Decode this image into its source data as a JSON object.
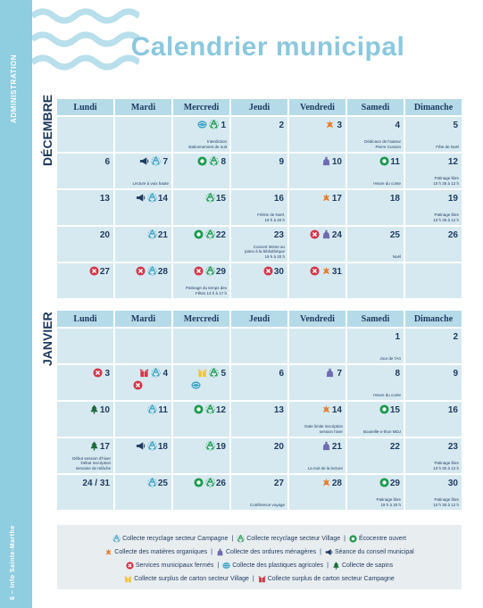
{
  "sidebar": {
    "section": "ADMINISTRATION",
    "footer": "6 – Info Sainte-Marthe"
  },
  "title": "Calendrier municipal",
  "days": [
    "Lundi",
    "Mardi",
    "Mercredi",
    "Jeudi",
    "Vendredi",
    "Samedi",
    "Dimanche"
  ],
  "colors": {
    "band": "#8fcde0",
    "title": "#8cc8dd",
    "header": "#b5dbe8",
    "cell": "#d6e9f0",
    "navy": "#1e3a5f",
    "green": "#1f9a50",
    "red": "#d4364a",
    "purple": "#6f6bb0",
    "orange": "#e87d2f",
    "teal": "#3ba3c4",
    "yellow": "#f2c43a",
    "tree": "#1c6b3a"
  },
  "months": [
    {
      "label": "DÉCEMBRE",
      "weeks": [
        [
          {
            "num": "",
            "icons": [],
            "note": ""
          },
          {
            "num": "",
            "icons": [],
            "note": ""
          },
          {
            "num": "1",
            "icons": [
              "plastic-icon",
              "recycle-green-icon"
            ],
            "note": "Interdiction\nstationnement de nuit"
          },
          {
            "num": "2",
            "icons": [],
            "note": ""
          },
          {
            "num": "3",
            "icons": [
              "organic-icon"
            ],
            "note": ""
          },
          {
            "num": "4",
            "icons": [],
            "note": "Dédicace de l'auteur\nPierre Cusson"
          },
          {
            "num": "5",
            "icons": [],
            "note": "Fête de Noël"
          }
        ],
        [
          {
            "num": "6",
            "icons": [],
            "note": ""
          },
          {
            "num": "7",
            "icons": [
              "megaphone-icon",
              "recycle-blue-icon"
            ],
            "note": "Lecture à voix haute"
          },
          {
            "num": "8",
            "icons": [
              "ecocentre-icon",
              "recycle-green-icon"
            ],
            "note": ""
          },
          {
            "num": "9",
            "icons": [],
            "note": ""
          },
          {
            "num": "10",
            "icons": [
              "garbage-icon"
            ],
            "note": ""
          },
          {
            "num": "11",
            "icons": [
              "ecocentre-icon"
            ],
            "note": "Heure du conte"
          },
          {
            "num": "12",
            "icons": [],
            "note": "Patinage libre\n10 h 30 à 12 h"
          }
        ],
        [
          {
            "num": "13",
            "icons": [],
            "note": ""
          },
          {
            "num": "14",
            "icons": [
              "megaphone-icon",
              "recycle-blue-icon"
            ],
            "note": ""
          },
          {
            "num": "15",
            "icons": [
              "recycle-green-icon"
            ],
            "note": ""
          },
          {
            "num": "16",
            "icons": [],
            "note": "Féérie de Noël,\n19 h à 20 h"
          },
          {
            "num": "17",
            "icons": [
              "organic-icon"
            ],
            "note": ""
          },
          {
            "num": "18",
            "icons": [],
            "note": ""
          },
          {
            "num": "19",
            "icons": [],
            "note": "Patinage libre\n10 h 30 à 12 h"
          }
        ],
        [
          {
            "num": "20",
            "icons": [],
            "note": ""
          },
          {
            "num": "21",
            "icons": [
              "recycle-blue-icon"
            ],
            "note": ""
          },
          {
            "num": "22",
            "icons": [
              "ecocentre-icon",
              "recycle-green-icon"
            ],
            "note": ""
          },
          {
            "num": "23",
            "icons": [],
            "note": "Concert intime au\npiano à la bibliothèque\n19 h à 20 h"
          },
          {
            "num": "24",
            "icons": [
              "closed-icon",
              "garbage-icon"
            ],
            "note": ""
          },
          {
            "num": "25",
            "icons": [],
            "note": "Noël"
          },
          {
            "num": "26",
            "icons": [],
            "note": ""
          }
        ],
        [
          {
            "num": "27",
            "icons": [
              "closed-icon"
            ],
            "note": ""
          },
          {
            "num": "28",
            "icons": [
              "closed-icon",
              "recycle-blue-icon"
            ],
            "note": ""
          },
          {
            "num": "29",
            "icons": [
              "closed-icon",
              "recycle-green-icon"
            ],
            "note": "Patinage du temps des\nFêtes 13 h à 17 h"
          },
          {
            "num": "30",
            "icons": [
              "closed-icon"
            ],
            "note": ""
          },
          {
            "num": "31",
            "icons": [
              "closed-icon",
              "organic-icon"
            ],
            "note": ""
          },
          {
            "num": "",
            "icons": [],
            "note": ""
          },
          {
            "num": "",
            "icons": [],
            "note": ""
          }
        ]
      ]
    },
    {
      "label": "JANVIER",
      "weeks": [
        [
          {
            "num": "",
            "icons": [],
            "note": ""
          },
          {
            "num": "",
            "icons": [],
            "note": ""
          },
          {
            "num": "",
            "icons": [],
            "note": ""
          },
          {
            "num": "",
            "icons": [],
            "note": ""
          },
          {
            "num": "",
            "icons": [],
            "note": ""
          },
          {
            "num": "1",
            "icons": [],
            "note": "Jour de l'An"
          },
          {
            "num": "2",
            "icons": [],
            "note": ""
          }
        ],
        [
          {
            "num": "3",
            "icons": [
              "closed-icon"
            ],
            "note": ""
          },
          {
            "num": "4",
            "icons": [
              "carton-red-icon",
              "recycle-blue-icon"
            ],
            "stack": "closed-icon",
            "note": ""
          },
          {
            "num": "5",
            "icons": [
              "carton-yellow-icon",
              "recycle-green-icon"
            ],
            "stack": "plastic-icon",
            "note": ""
          },
          {
            "num": "6",
            "icons": [],
            "note": ""
          },
          {
            "num": "7",
            "icons": [
              "garbage-icon"
            ],
            "note": ""
          },
          {
            "num": "8",
            "icons": [],
            "note": "Heure du conte"
          },
          {
            "num": "9",
            "icons": [],
            "note": ""
          }
        ],
        [
          {
            "num": "10",
            "icons": [
              "tree-icon"
            ],
            "note": ""
          },
          {
            "num": "11",
            "icons": [
              "recycle-blue-icon"
            ],
            "note": ""
          },
          {
            "num": "12",
            "icons": [
              "ecocentre-icon",
              "recycle-green-icon"
            ],
            "note": ""
          },
          {
            "num": "13",
            "icons": [],
            "note": ""
          },
          {
            "num": "14",
            "icons": [
              "organic-icon"
            ],
            "note": "Date limite inscription\nsession hiver"
          },
          {
            "num": "15",
            "icons": [
              "ecocentre-icon"
            ],
            "note": "Bouteille-o-thon MDJ"
          },
          {
            "num": "16",
            "icons": [],
            "note": ""
          }
        ],
        [
          {
            "num": "17",
            "icons": [
              "tree-icon"
            ],
            "note": "Début session d'hiver\nDébut inscription\nsemaine de relâche"
          },
          {
            "num": "18",
            "icons": [
              "megaphone-icon",
              "recycle-blue-icon"
            ],
            "note": ""
          },
          {
            "num": "19",
            "icons": [
              "recycle-green-icon"
            ],
            "note": ""
          },
          {
            "num": "20",
            "icons": [],
            "note": ""
          },
          {
            "num": "21",
            "icons": [
              "garbage-icon"
            ],
            "note": "La nuit de la lecture"
          },
          {
            "num": "22",
            "icons": [],
            "note": ""
          },
          {
            "num": "23",
            "icons": [],
            "note": "Patinage libre\n10 h 30 à 12 h"
          }
        ],
        [
          {
            "num": "24 / 31",
            "icons": [],
            "note": ""
          },
          {
            "num": "25",
            "icons": [
              "recycle-blue-icon"
            ],
            "note": ""
          },
          {
            "num": "26",
            "icons": [
              "ecocentre-icon",
              "recycle-green-icon"
            ],
            "note": ""
          },
          {
            "num": "27",
            "icons": [],
            "note": "Conférence voyage"
          },
          {
            "num": "28",
            "icons": [
              "organic-icon"
            ],
            "note": ""
          },
          {
            "num": "29",
            "icons": [
              "ecocentre-icon"
            ],
            "note": "Patinage libre\n19 h à 20 h"
          },
          {
            "num": "30",
            "icons": [],
            "note": "Patinage libre\n10 h 30 à 12 h"
          }
        ]
      ]
    }
  ],
  "legend": [
    [
      {
        "icon": "recycle-blue-icon",
        "text": "Collecte recyclage secteur Campagne"
      },
      {
        "icon": "recycle-green-icon",
        "text": "Collecte recyclage secteur Village"
      },
      {
        "icon": "ecocentre-icon",
        "text": "Écocentre ouvert"
      }
    ],
    [
      {
        "icon": "organic-icon",
        "text": "Collecte des matières organiques"
      },
      {
        "icon": "garbage-icon",
        "text": "Collecte des ordures ménagères"
      },
      {
        "icon": "megaphone-icon",
        "text": "Séance du conseil municipal"
      }
    ],
    [
      {
        "icon": "closed-icon",
        "text": "Services municipaux fermés"
      },
      {
        "icon": "plastic-icon",
        "text": "Collecte des plastiques agricoles"
      },
      {
        "icon": "tree-icon",
        "text": "Collecte de sapins"
      }
    ],
    [
      {
        "icon": "carton-yellow-icon",
        "text": "Collecte surplus de carton secteur Village"
      },
      {
        "icon": "carton-red-icon",
        "text": "Collecte surplus de carton secteur Campagne"
      }
    ]
  ]
}
